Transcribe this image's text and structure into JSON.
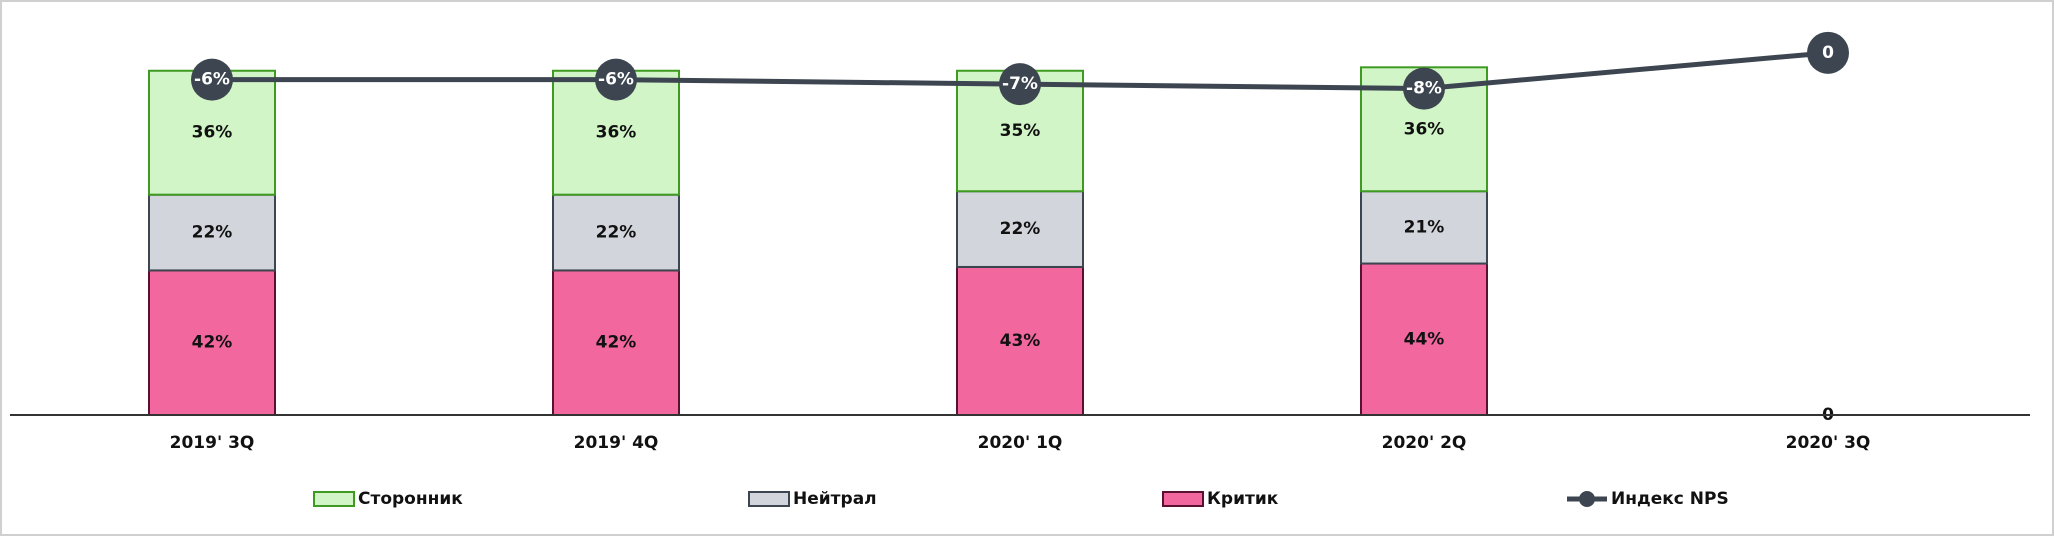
{
  "chart_data": {
    "type": "bar",
    "stacked": true,
    "categories": [
      "2019' 3Q",
      "2019' 4Q",
      "2020' 1Q",
      "2020' 2Q",
      "2020' 3Q"
    ],
    "ylim": [
      0,
      113
    ],
    "y2lim": [
      -81,
      6
    ],
    "series": [
      {
        "name": "Сторонник",
        "type": "bar",
        "color": "#d2f5c8",
        "stroke": "#3f9a22",
        "values": [
          36,
          36,
          35,
          36,
          null
        ],
        "value_labels": [
          "36%",
          "36%",
          "35%",
          "36%",
          null
        ]
      },
      {
        "name": "Нейтрал",
        "type": "bar",
        "color": "#d2d6dc",
        "stroke": "#3d4650",
        "values": [
          22,
          22,
          22,
          21,
          null
        ],
        "value_labels": [
          "22%",
          "22%",
          "22%",
          "21%",
          null
        ]
      },
      {
        "name": "Критик",
        "type": "bar",
        "color": "#f2679e",
        "stroke": "#5a1030",
        "values": [
          42,
          42,
          43,
          44,
          0
        ],
        "value_labels": [
          "42%",
          "42%",
          "43%",
          "44%",
          "0"
        ]
      },
      {
        "name": "Индекс NPS",
        "type": "line",
        "axis": "y2",
        "color": "#3d4650",
        "values": [
          -6,
          -6,
          -7,
          -8,
          0
        ],
        "value_labels": [
          "-6%",
          "-6%",
          "-7%",
          "-8%",
          "0"
        ]
      }
    ]
  }
}
